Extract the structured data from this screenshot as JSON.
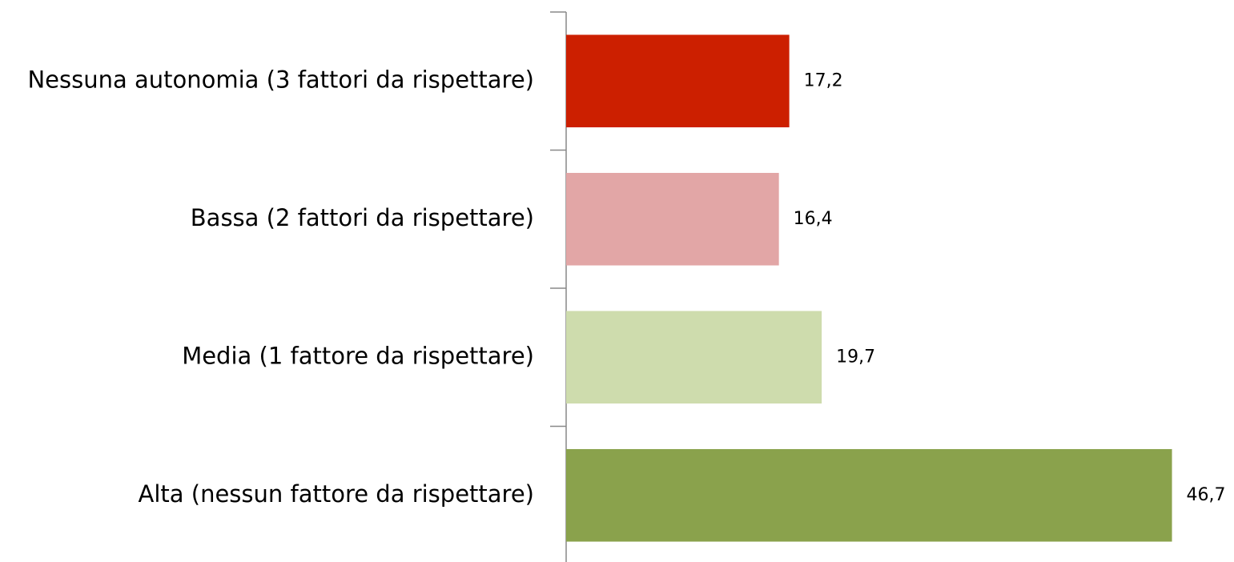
{
  "chart_data": {
    "type": "bar",
    "orientation": "horizontal",
    "categories": [
      "Nessuna autonomia (3 fattori da rispettare)",
      "Bassa (2 fattori da rispettare)",
      "Media (1 fattore da rispettare)",
      "Alta (nessun fattore da rispettare)"
    ],
    "values": [
      17.2,
      16.4,
      19.7,
      46.7
    ],
    "value_labels": [
      "17,2",
      "16,4",
      "19,7",
      "46,7"
    ],
    "colors": [
      "#cc1f00",
      "#e2a6a6",
      "#cedcad",
      "#8aa24c"
    ],
    "xlim": [
      0,
      50
    ]
  }
}
